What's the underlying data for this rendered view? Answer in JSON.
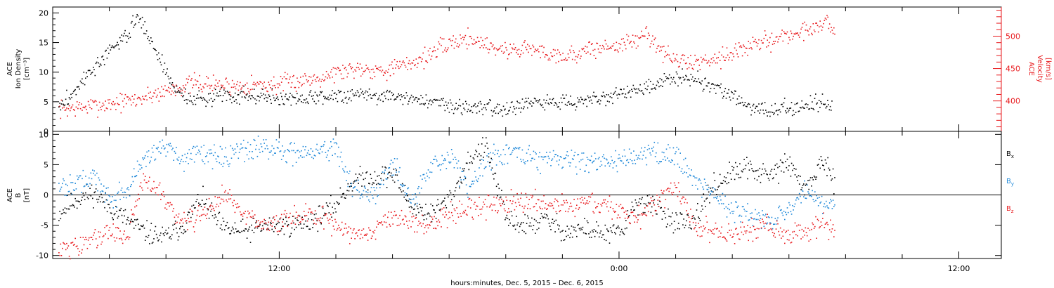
{
  "chart_data": [
    {
      "type": "scatter",
      "panel": "plasma",
      "ylabel_left": [
        "ACE",
        "Ion Density",
        "[cm⁻³]"
      ],
      "ylabel_right": [
        "ACE",
        "Velocity",
        "[km/s]"
      ],
      "ylim_left": [
        0,
        21
      ],
      "ylim_right": [
        353,
        545
      ],
      "yticks_left": [
        "0",
        "5",
        "10",
        "15",
        "20"
      ],
      "yticks_right": [
        "400",
        "450",
        "500"
      ],
      "colors": {
        "density": "#000000",
        "velocity": "#e8181c"
      },
      "series": [
        {
          "key": "density",
          "axis": "left",
          "points": [
            [
              4.2,
              4
            ],
            [
              4.6,
              6
            ],
            [
              5.1,
              9
            ],
            [
              5.6,
              11.5
            ],
            [
              6.2,
              14.5
            ],
            [
              6.7,
              17
            ],
            [
              7.0,
              19.5
            ],
            [
              7.4,
              16
            ],
            [
              7.8,
              12
            ],
            [
              8.2,
              8
            ],
            [
              8.6,
              6
            ],
            [
              9.2,
              5.3
            ],
            [
              10.0,
              6.5
            ],
            [
              10.6,
              6.2
            ],
            [
              11.2,
              6
            ],
            [
              11.8,
              5.7
            ],
            [
              12.5,
              5.6
            ],
            [
              13.3,
              5.8
            ],
            [
              14.0,
              6.2
            ],
            [
              14.8,
              6.4
            ],
            [
              15.6,
              6.1
            ],
            [
              16.5,
              5.8
            ],
            [
              17.3,
              5.2
            ],
            [
              18.0,
              4.5
            ],
            [
              18.8,
              4.2
            ],
            [
              19.6,
              4.0
            ],
            [
              20.4,
              4.3
            ],
            [
              21.2,
              4.8
            ],
            [
              22.0,
              5.1
            ],
            [
              22.8,
              5.4
            ],
            [
              23.6,
              6.0
            ],
            [
              24.3,
              6.8
            ],
            [
              25.0,
              7.2
            ],
            [
              25.6,
              8.5
            ],
            [
              26.2,
              9.5
            ],
            [
              26.8,
              8.8
            ],
            [
              27.4,
              7.5
            ],
            [
              28.0,
              6.0
            ],
            [
              28.6,
              4.2
            ],
            [
              29.2,
              3.5
            ],
            [
              29.8,
              3.8
            ],
            [
              30.4,
              4.3
            ],
            [
              31.0,
              5.0
            ],
            [
              31.5,
              4.2
            ]
          ]
        },
        {
          "key": "velocity",
          "axis": "right",
          "points": [
            [
              4.2,
              388
            ],
            [
              4.8,
              390
            ],
            [
              5.5,
              393
            ],
            [
              6.2,
              398
            ],
            [
              6.9,
              402
            ],
            [
              7.6,
              412
            ],
            [
              8.3,
              420
            ],
            [
              9.0,
              428
            ],
            [
              9.7,
              426
            ],
            [
              10.4,
              424
            ],
            [
              11.1,
              426
            ],
            [
              11.8,
              425
            ],
            [
              12.5,
              430
            ],
            [
              13.2,
              436
            ],
            [
              14.0,
              445
            ],
            [
              14.8,
              452
            ],
            [
              15.6,
              448
            ],
            [
              16.4,
              455
            ],
            [
              17.2,
              470
            ],
            [
              18.0,
              490
            ],
            [
              18.7,
              498
            ],
            [
              19.3,
              488
            ],
            [
              20.0,
              478
            ],
            [
              20.7,
              483
            ],
            [
              21.4,
              475
            ],
            [
              22.2,
              470
            ],
            [
              23.0,
              480
            ],
            [
              23.8,
              486
            ],
            [
              24.5,
              492
            ],
            [
              25.0,
              505
            ],
            [
              25.6,
              472
            ],
            [
              26.2,
              460
            ],
            [
              26.9,
              462
            ],
            [
              27.6,
              470
            ],
            [
              28.3,
              480
            ],
            [
              29.0,
              490
            ],
            [
              29.7,
              500
            ],
            [
              30.3,
              505
            ],
            [
              30.9,
              515
            ],
            [
              31.3,
              525
            ],
            [
              31.6,
              505
            ]
          ]
        }
      ]
    },
    {
      "type": "scatter",
      "panel": "field",
      "ylabel_left": [
        "ACE",
        "B",
        "[nT]"
      ],
      "ylim": [
        -10.5,
        10.5
      ],
      "yticks": [
        "-10",
        "-5",
        "0",
        "5",
        "10"
      ],
      "zero_line": true,
      "series": [
        {
          "name": "B",
          "sub": "x",
          "color": "#000000",
          "points": [
            [
              4.2,
              -3
            ],
            [
              4.7,
              -1
            ],
            [
              5.4,
              0.5
            ],
            [
              6.0,
              -2
            ],
            [
              6.6,
              -4
            ],
            [
              7.2,
              -6
            ],
            [
              7.9,
              -7
            ],
            [
              8.6,
              -5
            ],
            [
              9.2,
              -0.5
            ],
            [
              10.0,
              -5.5
            ],
            [
              10.8,
              -6
            ],
            [
              11.5,
              -5
            ],
            [
              12.4,
              -5
            ],
            [
              13.2,
              -4
            ],
            [
              13.9,
              -2
            ],
            [
              14.6,
              2.5
            ],
            [
              15.3,
              3
            ],
            [
              16.0,
              3.5
            ],
            [
              16.7,
              -2
            ],
            [
              17.4,
              -3
            ],
            [
              18.1,
              0
            ],
            [
              18.7,
              6
            ],
            [
              19.3,
              8
            ],
            [
              20.0,
              -4
            ],
            [
              20.7,
              -5
            ],
            [
              21.4,
              -4
            ],
            [
              22.1,
              -6
            ],
            [
              22.8,
              -5.5
            ],
            [
              23.5,
              -6.5
            ],
            [
              24.1,
              -6
            ],
            [
              24.6,
              -1
            ],
            [
              25.3,
              -2
            ],
            [
              26.0,
              -4.5
            ],
            [
              26.6,
              -5
            ],
            [
              27.2,
              1
            ],
            [
              27.9,
              3.5
            ],
            [
              28.6,
              4.5
            ],
            [
              29.3,
              3
            ],
            [
              29.9,
              5.5
            ],
            [
              30.6,
              1
            ],
            [
              31.2,
              6
            ],
            [
              31.6,
              1
            ]
          ]
        },
        {
          "name": "B",
          "sub": "y",
          "color": "#1a86d8",
          "points": [
            [
              4.2,
              1
            ],
            [
              4.7,
              2
            ],
            [
              5.4,
              3
            ],
            [
              6.0,
              -0.5
            ],
            [
              6.6,
              1
            ],
            [
              7.2,
              6
            ],
            [
              7.9,
              8.5
            ],
            [
              8.6,
              6
            ],
            [
              9.2,
              7
            ],
            [
              10.0,
              6
            ],
            [
              10.8,
              7.5
            ],
            [
              11.5,
              8
            ],
            [
              12.4,
              7
            ],
            [
              13.2,
              7
            ],
            [
              13.9,
              8
            ],
            [
              14.6,
              1
            ],
            [
              15.3,
              0
            ],
            [
              16.0,
              5
            ],
            [
              16.7,
              -1
            ],
            [
              17.4,
              5
            ],
            [
              18.1,
              6
            ],
            [
              18.7,
              1
            ],
            [
              19.3,
              6
            ],
            [
              20.0,
              7
            ],
            [
              20.7,
              6.5
            ],
            [
              21.4,
              5.5
            ],
            [
              22.1,
              6.5
            ],
            [
              22.8,
              5.5
            ],
            [
              23.5,
              5.5
            ],
            [
              24.1,
              6
            ],
            [
              24.6,
              6.5
            ],
            [
              25.3,
              6.5
            ],
            [
              26.0,
              6.5
            ],
            [
              26.6,
              3
            ],
            [
              27.2,
              1
            ],
            [
              27.9,
              -2
            ],
            [
              28.6,
              -3
            ],
            [
              29.3,
              -4
            ],
            [
              29.9,
              -3
            ],
            [
              30.6,
              1
            ],
            [
              31.2,
              -1
            ],
            [
              31.6,
              -2
            ]
          ]
        },
        {
          "name": "B",
          "sub": "z",
          "color": "#e8181c",
          "points": [
            [
              4.2,
              -9
            ],
            [
              4.7,
              -8.5
            ],
            [
              5.4,
              -7
            ],
            [
              6.0,
              -6
            ],
            [
              6.6,
              -7
            ],
            [
              7.2,
              3
            ],
            [
              7.9,
              0
            ],
            [
              8.6,
              -5
            ],
            [
              9.2,
              -3
            ],
            [
              10.0,
              0
            ],
            [
              10.8,
              -3
            ],
            [
              11.5,
              -5
            ],
            [
              12.4,
              -4
            ],
            [
              13.2,
              -3
            ],
            [
              13.9,
              -5
            ],
            [
              14.6,
              -6.5
            ],
            [
              15.3,
              -6
            ],
            [
              16.0,
              -3
            ],
            [
              16.7,
              -4
            ],
            [
              17.4,
              -5
            ],
            [
              18.1,
              -3
            ],
            [
              18.7,
              -2
            ],
            [
              19.3,
              -2
            ],
            [
              20.0,
              -1
            ],
            [
              20.7,
              -1
            ],
            [
              21.4,
              -1
            ],
            [
              22.1,
              -2
            ],
            [
              22.8,
              -1
            ],
            [
              23.5,
              -1.5
            ],
            [
              24.1,
              -3
            ],
            [
              24.6,
              -4
            ],
            [
              25.3,
              -1
            ],
            [
              26.0,
              1.5
            ],
            [
              26.6,
              -5
            ],
            [
              27.2,
              -6
            ],
            [
              27.9,
              -6.5
            ],
            [
              28.6,
              -6
            ],
            [
              29.3,
              -5
            ],
            [
              29.9,
              -6.5
            ],
            [
              30.6,
              -6
            ],
            [
              31.2,
              -4
            ],
            [
              31.6,
              -6.5
            ]
          ]
        }
      ]
    }
  ],
  "time_axis": {
    "xlim": [
      4.0,
      37.5
    ],
    "labeled_ticks": [
      {
        "x": 12,
        "label": "12:00"
      },
      {
        "x": 24,
        "label": "0:00"
      },
      {
        "x": 36,
        "label": "12:00"
      }
    ],
    "xlabel": "hours:minutes, Dec.  5, 2015 – Dec.  6, 2015"
  }
}
